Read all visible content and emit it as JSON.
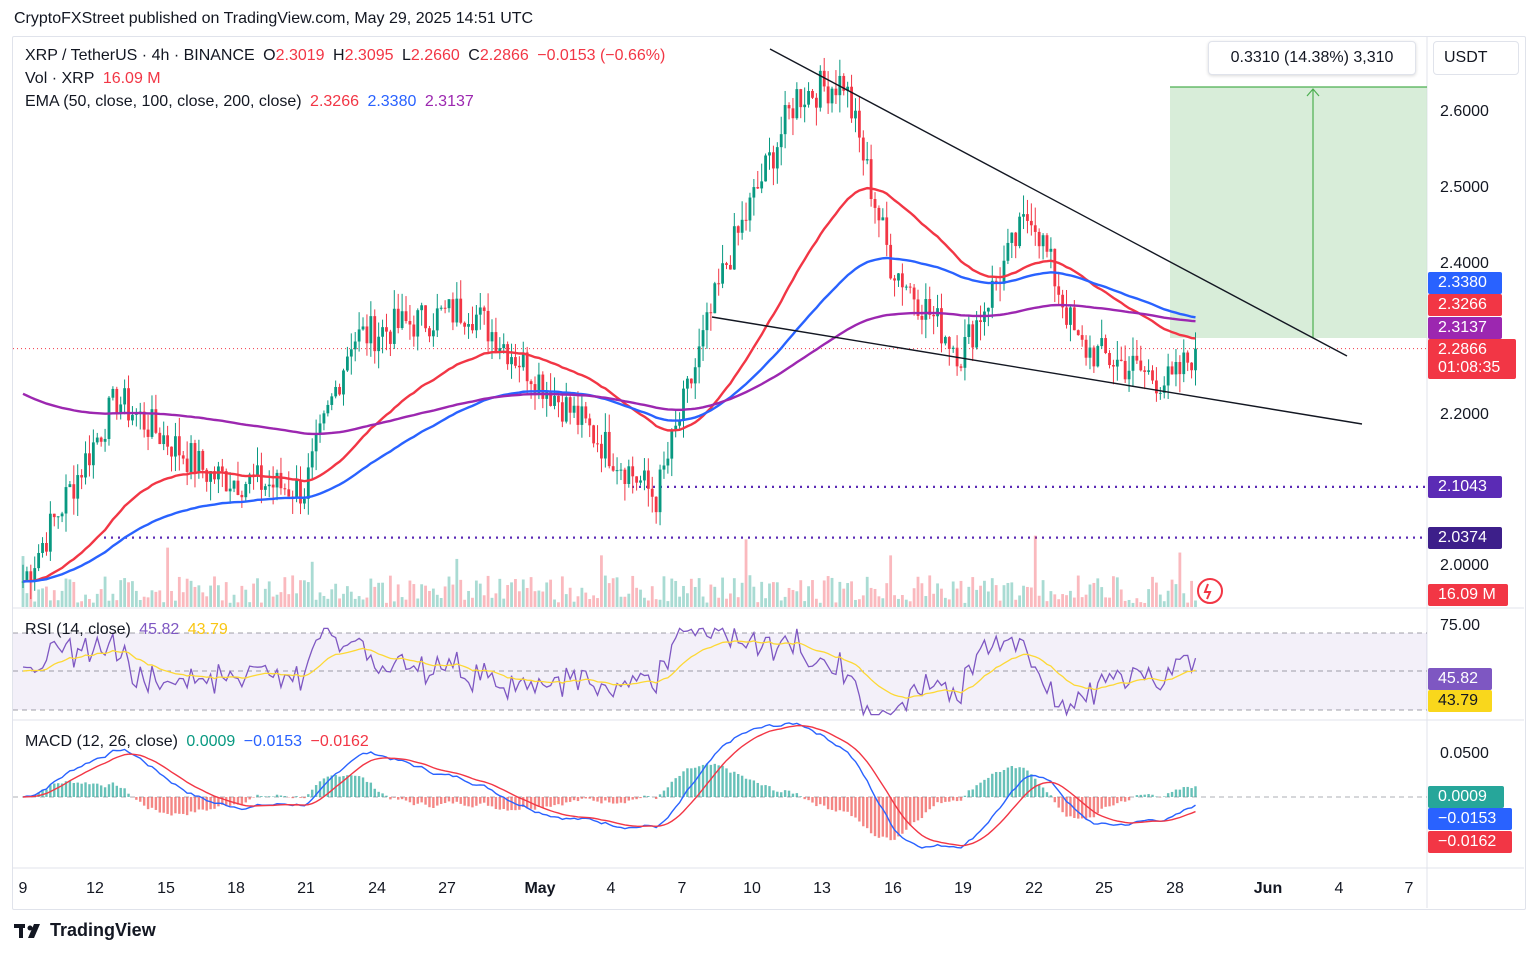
{
  "header": {
    "published": "CryptoFXStreet published on TradingView.com, May 29, 2025 14:51 UTC"
  },
  "legend": {
    "symbol": "XRP / TetherUS · 4h · BINANCE",
    "o_label": "O",
    "o": "2.3019",
    "h_label": "H",
    "h": "2.3095",
    "l_label": "L",
    "l": "2.2660",
    "c_label": "C",
    "c": "2.2866",
    "change": "−0.0153 (−0.66%)",
    "vol_label": "Vol · XRP",
    "vol": "16.09 M",
    "ema_label": "EMA (50, close, 100, close, 200, close)",
    "ema50": "2.3266",
    "ema100": "2.3380",
    "ema200": "2.3137"
  },
  "rsi_legend": {
    "label": "RSI (14, close)",
    "rsi": "45.82",
    "ma": "43.79"
  },
  "macd_legend": {
    "label": "MACD (12, 26, close)",
    "hist": "0.0009",
    "macd": "−0.0153",
    "signal": "−0.0162"
  },
  "measure": {
    "text": "0.3310 (14.38%) 3,310"
  },
  "currency": "USDT",
  "colors": {
    "up": "#089981",
    "down": "#f23645",
    "ema50": "#f23645",
    "ema100": "#2962ff",
    "ema200": "#9c27b0",
    "rsi": "#7e57c2",
    "rsi_ma": "#fdd835",
    "macd": "#2962ff",
    "signal": "#f23645",
    "support": "#5b2bb5"
  },
  "price_axis": {
    "ticks": [
      "2.6000",
      "2.5000",
      "2.4000",
      "2.2000",
      "2.0000"
    ]
  },
  "rsi_axis": {
    "ticks": [
      "75.00"
    ]
  },
  "macd_axis": {
    "ticks": [
      "0.0500"
    ]
  },
  "tags": {
    "ema100": "2.3380",
    "ema50": "2.3266",
    "ema200": "2.3137",
    "price": "2.2866",
    "countdown": "01:08:35",
    "support1": "2.1043",
    "support2": "2.0374",
    "vol": "16.09 M",
    "rsi": "45.82",
    "rsi_ma": "43.79",
    "hist": "0.0009",
    "macd": "−0.0153",
    "signal": "−0.0162"
  },
  "x_axis": {
    "labels": [
      "9",
      "12",
      "15",
      "18",
      "21",
      "24",
      "27",
      "May",
      "4",
      "7",
      "10",
      "13",
      "16",
      "19",
      "22",
      "25",
      "28",
      "Jun",
      "4",
      "7"
    ]
  },
  "footer": {
    "brand": "TradingView"
  },
  "chart_data": {
    "type": "candlestick",
    "symbol": "XRP / TetherUS",
    "timeframe": "4h",
    "exchange": "BINANCE",
    "ylim": [
      1.96,
      2.66
    ],
    "key_points": [
      {
        "date": "Apr 9",
        "price": 1.98
      },
      {
        "date": "Apr 13",
        "price": 2.22
      },
      {
        "date": "Apr 17",
        "price": 2.12
      },
      {
        "date": "Apr 21",
        "price": 2.1
      },
      {
        "date": "Apr 23",
        "price": 2.3
      },
      {
        "date": "Apr 28",
        "price": 2.34
      },
      {
        "date": "May 6",
        "price": 2.09
      },
      {
        "date": "May 9",
        "price": 2.4
      },
      {
        "date": "May 12",
        "price": 2.62
      },
      {
        "date": "May 14",
        "price": 2.64
      },
      {
        "date": "May 16",
        "price": 2.4
      },
      {
        "date": "May 19",
        "price": 2.28
      },
      {
        "date": "May 22",
        "price": 2.47
      },
      {
        "date": "May 24",
        "price": 2.29
      },
      {
        "date": "May 28",
        "price": 2.24
      },
      {
        "date": "May 29",
        "price": 2.2866
      }
    ],
    "emas": {
      "ema50": 2.3266,
      "ema100": 2.338,
      "ema200": 2.3137
    },
    "support_levels": [
      2.1043,
      2.0374
    ],
    "measure_target": {
      "change": 0.331,
      "percent": 14.38
    }
  }
}
